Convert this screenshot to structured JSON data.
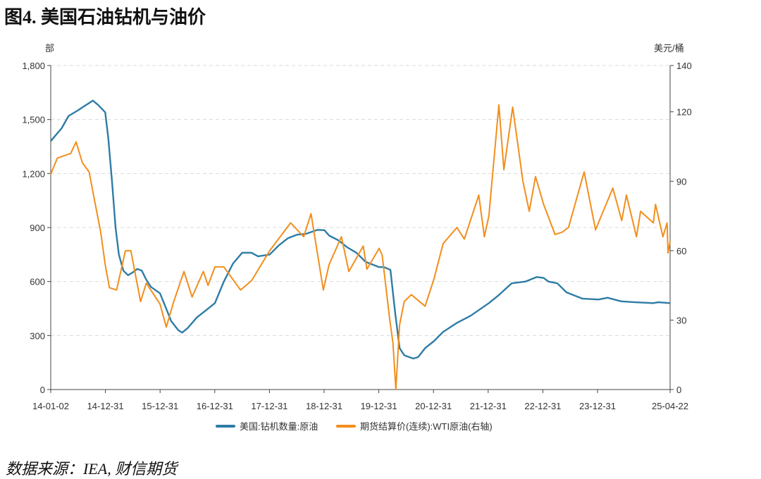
{
  "figure_title": "图4. 美国石油钻机与油价",
  "source_note": "数据来源：IEA, 财信期货",
  "chart_data": {
    "type": "line",
    "title": "",
    "y_left": {
      "unit": "部",
      "ticks": [
        "0",
        "300",
        "600",
        "900",
        "1,200",
        "1,500",
        "1,800"
      ],
      "lim": [
        0,
        1800
      ]
    },
    "y_right": {
      "unit": "美元/桶",
      "ticks": [
        "0",
        "30",
        "60",
        "90",
        "120",
        "140"
      ],
      "lim": [
        0,
        140
      ]
    },
    "x_ticks": [
      "14-01-02",
      "14-12-31",
      "15-12-31",
      "16-12-31",
      "17-12-31",
      "18-12-31",
      "19-12-31",
      "20-12-31",
      "21-12-31",
      "22-12-31",
      "23-12-31",
      "25-04-22"
    ],
    "x_lim": [
      "2014-01-02",
      "2025-04-22"
    ],
    "grid": true,
    "legend_position": "bottom",
    "colors": {
      "rigs": "#2e7ca6",
      "wti": "#f28e1c"
    },
    "series": [
      {
        "name": "美国:钻机数量:原油",
        "axis": "left",
        "points": [
          [
            "2014-01-02",
            1380
          ],
          [
            "2014-02-01",
            1410
          ],
          [
            "2014-03-15",
            1450
          ],
          [
            "2014-05-01",
            1520
          ],
          [
            "2014-07-01",
            1550
          ],
          [
            "2014-08-15",
            1575
          ],
          [
            "2014-10-10",
            1605
          ],
          [
            "2014-11-15",
            1580
          ],
          [
            "2014-12-31",
            1540
          ],
          [
            "2015-01-20",
            1400
          ],
          [
            "2015-02-15",
            1150
          ],
          [
            "2015-03-10",
            900
          ],
          [
            "2015-04-01",
            750
          ],
          [
            "2015-05-01",
            660
          ],
          [
            "2015-06-01",
            635
          ],
          [
            "2015-07-01",
            650
          ],
          [
            "2015-08-01",
            670
          ],
          [
            "2015-09-01",
            660
          ],
          [
            "2015-10-01",
            610
          ],
          [
            "2015-11-01",
            570
          ],
          [
            "2015-12-31",
            535
          ],
          [
            "2016-02-01",
            470
          ],
          [
            "2016-03-15",
            380
          ],
          [
            "2016-05-01",
            330
          ],
          [
            "2016-05-27",
            316
          ],
          [
            "2016-07-01",
            340
          ],
          [
            "2016-09-01",
            400
          ],
          [
            "2016-11-01",
            440
          ],
          [
            "2016-12-31",
            480
          ],
          [
            "2017-03-01",
            600
          ],
          [
            "2017-05-01",
            700
          ],
          [
            "2017-07-01",
            760
          ],
          [
            "2017-09-01",
            760
          ],
          [
            "2017-10-15",
            740
          ],
          [
            "2017-12-31",
            750
          ],
          [
            "2018-03-01",
            800
          ],
          [
            "2018-05-01",
            840
          ],
          [
            "2018-07-01",
            860
          ],
          [
            "2018-09-01",
            865
          ],
          [
            "2018-11-15",
            887
          ],
          [
            "2018-12-31",
            885
          ],
          [
            "2019-02-01",
            855
          ],
          [
            "2019-04-01",
            830
          ],
          [
            "2019-06-01",
            790
          ],
          [
            "2019-08-01",
            760
          ],
          [
            "2019-10-01",
            710
          ],
          [
            "2019-12-31",
            680
          ],
          [
            "2020-02-01",
            680
          ],
          [
            "2020-03-15",
            665
          ],
          [
            "2020-04-15",
            430
          ],
          [
            "2020-05-15",
            230
          ],
          [
            "2020-06-15",
            190
          ],
          [
            "2020-08-14",
            172
          ],
          [
            "2020-09-15",
            180
          ],
          [
            "2020-11-01",
            230
          ],
          [
            "2020-12-31",
            270
          ],
          [
            "2021-03-01",
            320
          ],
          [
            "2021-06-01",
            370
          ],
          [
            "2021-09-01",
            410
          ],
          [
            "2021-12-31",
            480
          ],
          [
            "2022-03-01",
            520
          ],
          [
            "2022-06-01",
            590
          ],
          [
            "2022-09-01",
            600
          ],
          [
            "2022-11-15",
            625
          ],
          [
            "2022-12-31",
            620
          ],
          [
            "2023-02-01",
            600
          ],
          [
            "2023-04-01",
            590
          ],
          [
            "2023-06-01",
            540
          ],
          [
            "2023-08-01",
            520
          ],
          [
            "2023-09-15",
            505
          ],
          [
            "2023-12-31",
            500
          ],
          [
            "2024-03-01",
            510
          ],
          [
            "2024-06-01",
            490
          ],
          [
            "2024-09-01",
            485
          ],
          [
            "2024-12-31",
            480
          ],
          [
            "2025-02-01",
            485
          ],
          [
            "2025-04-22",
            480
          ]
        ]
      },
      {
        "name": "期货结算价(连续):WTI原油(右轴)",
        "axis": "right",
        "points": [
          [
            "2014-01-02",
            93
          ],
          [
            "2014-02-15",
            100
          ],
          [
            "2014-04-01",
            101
          ],
          [
            "2014-05-15",
            102
          ],
          [
            "2014-06-20",
            107
          ],
          [
            "2014-08-01",
            98
          ],
          [
            "2014-09-15",
            94
          ],
          [
            "2014-10-20",
            82
          ],
          [
            "2014-12-01",
            68
          ],
          [
            "2014-12-31",
            54
          ],
          [
            "2015-01-28",
            44
          ],
          [
            "2015-03-17",
            43
          ],
          [
            "2015-05-15",
            60
          ],
          [
            "2015-06-20",
            60
          ],
          [
            "2015-08-24",
            38
          ],
          [
            "2015-10-01",
            46
          ],
          [
            "2015-12-31",
            37
          ],
          [
            "2016-02-11",
            27
          ],
          [
            "2016-04-01",
            38
          ],
          [
            "2016-06-08",
            51
          ],
          [
            "2016-08-01",
            40
          ],
          [
            "2016-10-15",
            51
          ],
          [
            "2016-11-15",
            45
          ],
          [
            "2016-12-31",
            53
          ],
          [
            "2017-03-01",
            53
          ],
          [
            "2017-06-20",
            43
          ],
          [
            "2017-09-01",
            47
          ],
          [
            "2017-12-31",
            60
          ],
          [
            "2018-05-20",
            72
          ],
          [
            "2018-08-15",
            66
          ],
          [
            "2018-10-03",
            76
          ],
          [
            "2018-12-24",
            43
          ],
          [
            "2019-01-31",
            54
          ],
          [
            "2019-04-23",
            66
          ],
          [
            "2019-06-12",
            51
          ],
          [
            "2019-09-16",
            62
          ],
          [
            "2019-10-10",
            52
          ],
          [
            "2019-12-31",
            61
          ],
          [
            "2020-01-20",
            58
          ],
          [
            "2020-03-09",
            31
          ],
          [
            "2020-04-01",
            20
          ],
          [
            "2020-04-20",
            0
          ],
          [
            "2020-05-15",
            28
          ],
          [
            "2020-06-15",
            38
          ],
          [
            "2020-08-01",
            41
          ],
          [
            "2020-11-01",
            36
          ],
          [
            "2020-12-31",
            48
          ],
          [
            "2021-03-01",
            63
          ],
          [
            "2021-06-01",
            70
          ],
          [
            "2021-07-20",
            65
          ],
          [
            "2021-10-25",
            84
          ],
          [
            "2021-12-01",
            66
          ],
          [
            "2021-12-31",
            75
          ],
          [
            "2022-03-08",
            123
          ],
          [
            "2022-04-10",
            95
          ],
          [
            "2022-06-08",
            122
          ],
          [
            "2022-08-15",
            90
          ],
          [
            "2022-09-26",
            77
          ],
          [
            "2022-11-07",
            92
          ],
          [
            "2022-12-31",
            80
          ],
          [
            "2023-03-17",
            67
          ],
          [
            "2023-05-04",
            68
          ],
          [
            "2023-06-15",
            70
          ],
          [
            "2023-09-27",
            94
          ],
          [
            "2023-12-12",
            69
          ],
          [
            "2023-12-31",
            72
          ],
          [
            "2024-04-05",
            87
          ],
          [
            "2024-06-04",
            73
          ],
          [
            "2024-07-05",
            84
          ],
          [
            "2024-09-10",
            66
          ],
          [
            "2024-10-07",
            77
          ],
          [
            "2024-12-31",
            72
          ],
          [
            "2025-01-15",
            80
          ],
          [
            "2025-03-05",
            66
          ],
          [
            "2025-04-02",
            72
          ],
          [
            "2025-04-08",
            59
          ],
          [
            "2025-04-22",
            64
          ]
        ]
      }
    ]
  }
}
